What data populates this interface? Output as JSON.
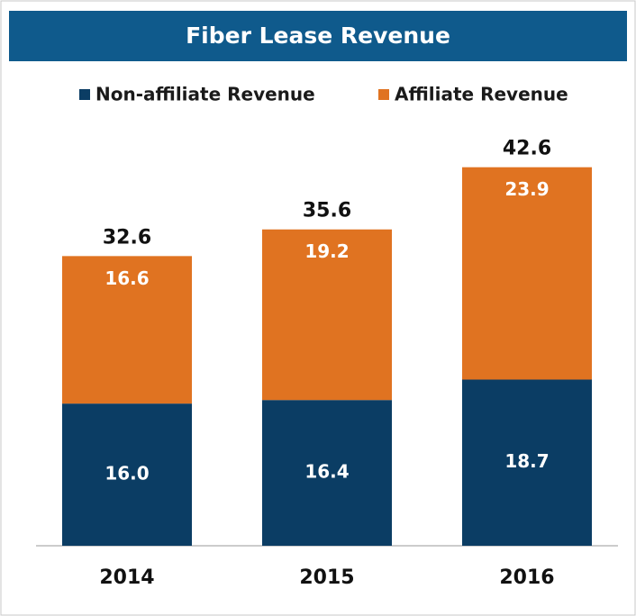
{
  "chart_data": {
    "type": "stacked_bar",
    "title": "Fiber Lease Revenue",
    "categories": [
      "2014",
      "2015",
      "2016"
    ],
    "series": [
      {
        "name": "Non-affiliate Revenue",
        "color": "#0b3d64",
        "values": [
          16,
          16.4,
          18.7
        ],
        "value_labels": [
          "16.0",
          "16.4",
          "18.7"
        ]
      },
      {
        "name": "Affiliate Revenue",
        "color": "#e07321",
        "values": [
          16.6,
          19.2,
          23.9
        ]
      }
    ],
    "totals": [
      32.6,
      35.6,
      42.6
    ],
    "ylim": [
      0,
      45
    ]
  }
}
